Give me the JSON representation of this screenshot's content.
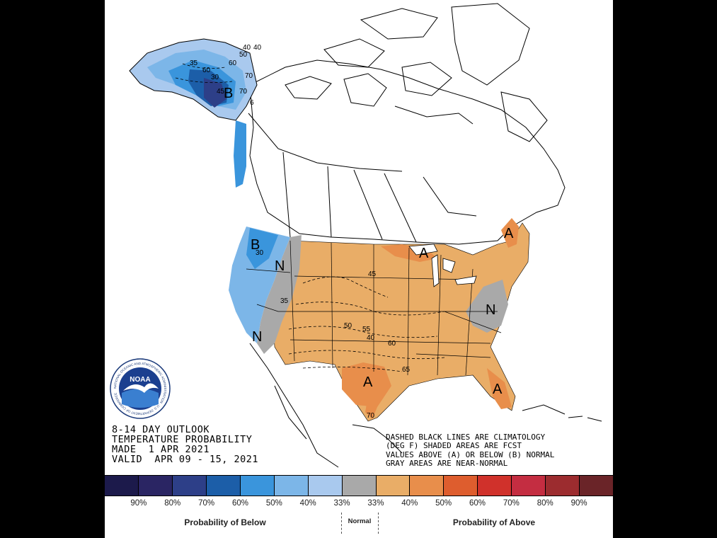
{
  "outlook": {
    "line1": "8-14 DAY OUTLOOK",
    "line2": "TEMPERATURE PROBABILITY",
    "line3": "MADE  1 APR 2021",
    "line4": "VALID  APR 09 - 15, 2021"
  },
  "legend_note": {
    "line1": "DASHED BLACK LINES ARE CLIMATOLOGY",
    "line2": "(DEG F) SHADED AREAS ARE FCST",
    "line3": "VALUES ABOVE (A) OR BELOW (B) NORMAL",
    "line4": "GRAY AREAS ARE NEAR-NORMAL"
  },
  "colorbar": {
    "colors": [
      "#1c1a4b",
      "#2a2563",
      "#2d3f88",
      "#1c5ea8",
      "#3a95dc",
      "#7cb6e8",
      "#a9c9ee",
      "#a9a9a9",
      "#e9ad67",
      "#e88e4b",
      "#de5d2e",
      "#d0312b",
      "#c42d41",
      "#9c2c2f",
      "#6a2428"
    ],
    "ticks": [
      "90%",
      "80%",
      "70%",
      "60%",
      "50%",
      "40%",
      "33%",
      "33%",
      "40%",
      "50%",
      "60%",
      "70%",
      "80%",
      "90%"
    ],
    "below_label": "Probability of Below",
    "normal_label": "Normal",
    "above_label": "Probability of Above"
  },
  "map_labels": {
    "b_alaska": "B",
    "b_northwest": "B",
    "n_great_basin": "N",
    "n_california": "N",
    "n_mid_atlantic": "N",
    "a_texas": "A",
    "a_great_lakes": "A",
    "a_new_england": "A",
    "a_florida": "A"
  },
  "contour_labels": [
    "40",
    "50",
    "60",
    "35",
    "60",
    "40",
    "70",
    "30",
    "70",
    "45",
    "6",
    "30",
    "40",
    "45",
    "50",
    "55",
    "60",
    "65",
    "35",
    "70"
  ],
  "logo": {
    "name": "NOAA",
    "ring_text": "NATIONAL OCEANIC AND ATMOSPHERIC ADMINISTRATION · U.S. DEPARTMENT OF COMMERCE"
  },
  "map_colors": {
    "above_40": "#e9ad67",
    "above_50": "#e88e4b",
    "near_normal": "#a9a9a9",
    "below_40": "#7cb6e8",
    "below_50": "#3a95dc",
    "below_60": "#1c5ea8",
    "below_70": "#2d3f88"
  }
}
